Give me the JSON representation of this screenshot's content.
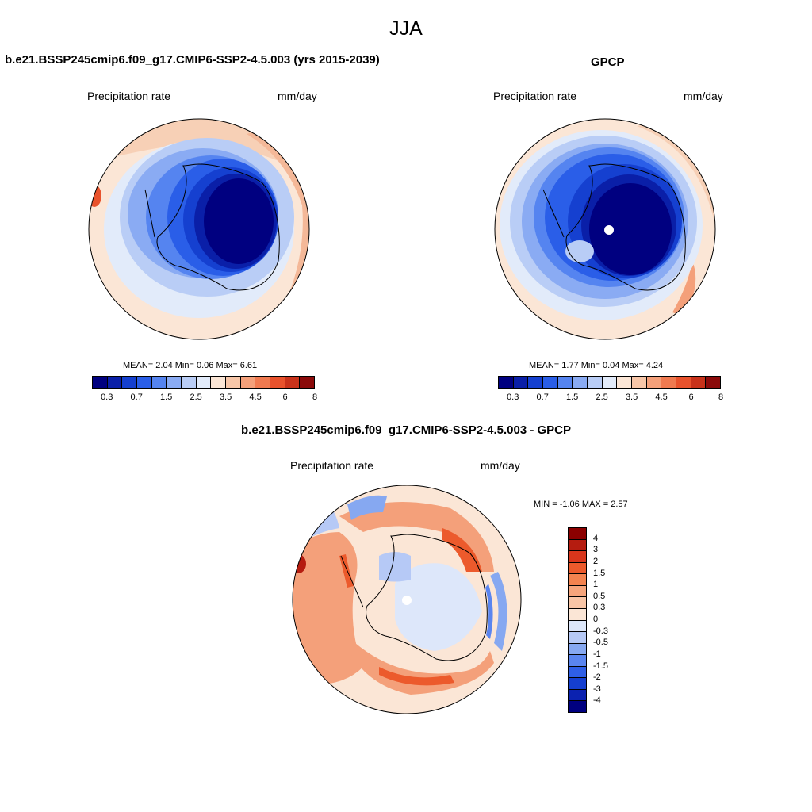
{
  "page": {
    "season": "JJA"
  },
  "panels": {
    "model": {
      "title": "b.e21.BSSP245cmip6.f09_g17.CMIP6-SSP2-4.5.003 (yrs 2015-2039)",
      "left_label": "Precipitation rate",
      "right_label": "mm/day",
      "mean_label": "MEAN=",
      "mean_value": "2.04",
      "min_label": "Min=",
      "min_value": "0.06",
      "max_label": "Max=",
      "max_value": "6.61"
    },
    "obs": {
      "title": "GPCP",
      "left_label": "Precipitation rate",
      "right_label": "mm/day",
      "mean_label": "MEAN=",
      "mean_value": "1.77",
      "min_label": "Min=",
      "min_value": "0.04",
      "max_label": "Max=",
      "max_value": "4.24"
    },
    "diff": {
      "title": "b.e21.BSSP245cmip6.f09_g17.CMIP6-SSP2-4.5.003 - GPCP",
      "left_label": "Precipitation rate",
      "right_label": "mm/day",
      "minmax_text": "MIN =  -1.06 MAX =   2.57"
    }
  },
  "colorbars": {
    "abs": {
      "colors": [
        "#000080",
        "#0a1fa8",
        "#1540d0",
        "#2a5ee8",
        "#5584f0",
        "#8aabf3",
        "#b9cdf6",
        "#e2ebfa",
        "#fbe6d6",
        "#f7c6a8",
        "#f4a07a",
        "#f07a50",
        "#e8522c",
        "#c8321a",
        "#8b0a0a"
      ],
      "ticks": [
        "0.3",
        "0.7",
        "1.5",
        "2.5",
        "3.5",
        "4.5",
        "6",
        "8"
      ]
    },
    "diff": {
      "colors": [
        "#8b0000",
        "#b51c10",
        "#d8361c",
        "#ec5a2c",
        "#f4834f",
        "#f6a57c",
        "#f8c5a6",
        "#fbe6d6",
        "#dde7fa",
        "#b6c9f6",
        "#86a8f1",
        "#5a85ef",
        "#2f5fe6",
        "#153fd0",
        "#0b22b0",
        "#000080"
      ],
      "ticks": [
        "4",
        "3",
        "2",
        "1.5",
        "1",
        "0.5",
        "0.3",
        "0",
        "-0.3",
        "-0.5",
        "-1",
        "-1.5",
        "-2",
        "-3",
        "-4"
      ]
    }
  }
}
